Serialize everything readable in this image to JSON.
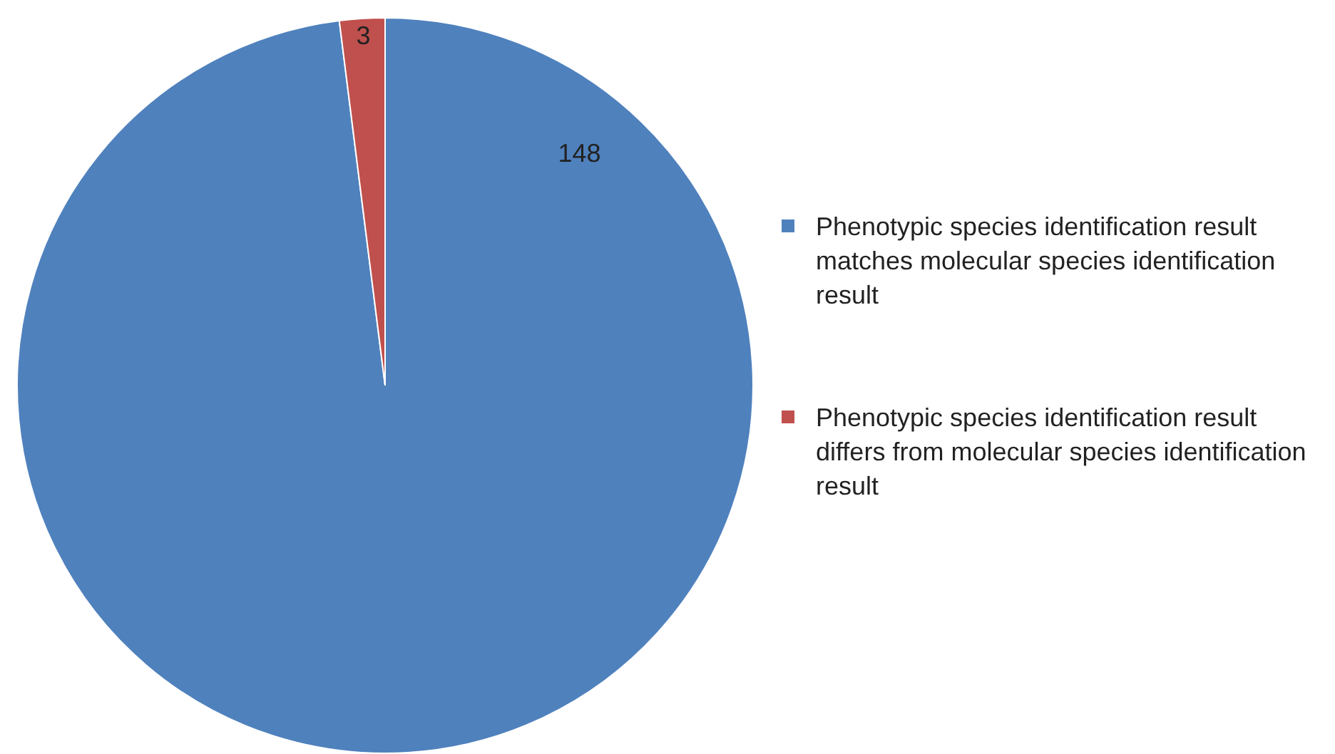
{
  "chart_data": {
    "type": "pie",
    "categories": [
      "Phenotypic species identification result matches molecular species identification result",
      "Phenotypic species identification result differs from molecular species identification result"
    ],
    "values": [
      148,
      3
    ],
    "colors": [
      "#4f81bd",
      "#c0504d"
    ],
    "data_labels": true,
    "legend": "right"
  }
}
